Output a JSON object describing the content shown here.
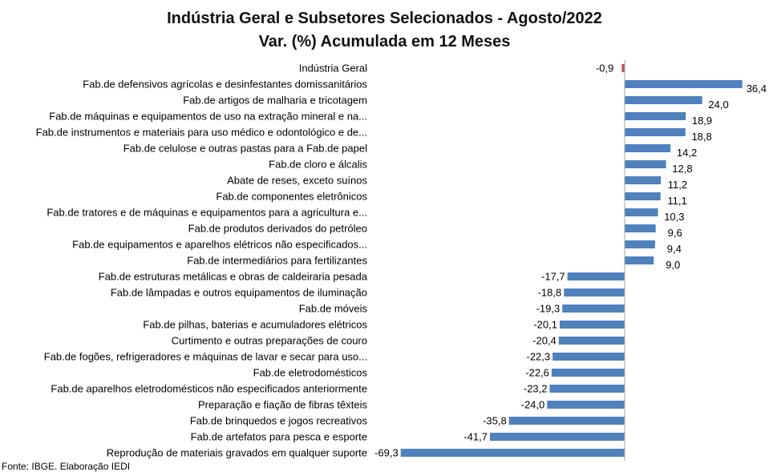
{
  "chart_data": {
    "type": "bar",
    "orientation": "horizontal",
    "title": "Indústria Geral e Subsetores Selecionados - Agosto/2022",
    "subtitle": "Var. (%) Acumulada em 12 Meses",
    "source": "Fonte: IBGE. Elaboração IEDI",
    "xlim": [
      -69.3,
      36.4
    ],
    "grid": false,
    "legend": "none",
    "colors": {
      "positive": "#4F81BD",
      "negative": "#C0504D",
      "axis": "#A6A6A6"
    },
    "categories": [
      "Indústria Geral",
      "Fab.de defensivos agrícolas e desinfestantes domissanitários",
      "Fab.de artigos de malharia e tricotagem",
      "Fab.de máquinas e equipamentos de uso na extração mineral e na...",
      "Fab.de instrumentos e materiais para uso médico e odontológico e de...",
      "Fab.de celulose e outras pastas para a Fab.de papel",
      "Fab.de cloro e álcalis",
      "Abate de reses, exceto suínos",
      "Fab.de componentes eletrônicos",
      "Fab.de tratores e de máquinas e equipamentos para a agricultura e...",
      "Fab.de produtos derivados do petróleo",
      "Fab.de equipamentos e aparelhos elétricos não especificados...",
      "Fab.de intermediários para fertilizantes",
      "Fab.de estruturas metálicas e obras de caldeiraria pesada",
      "Fab.de lâmpadas e outros equipamentos de iluminação",
      "Fab.de móveis",
      "Fab.de pilhas, baterias e acumuladores elétricos",
      "Curtimento e outras preparações de couro",
      "Fab.de fogões, refrigeradores e máquinas de lavar e secar para uso...",
      "Fab.de eletrodomésticos",
      "Fab.de aparelhos eletrodomésticos não especificados anteriormente",
      "Preparação e fiação de fibras têxteis",
      "Fab.de brinquedos e jogos recreativos",
      "Fab.de artefatos para pesca e esporte",
      "Reprodução de materiais gravados em qualquer suporte"
    ],
    "values": [
      -0.9,
      36.4,
      24.0,
      18.9,
      18.8,
      14.2,
      12.8,
      11.2,
      11.1,
      10.3,
      9.6,
      9.4,
      9.0,
      -17.7,
      -18.8,
      -19.3,
      -20.1,
      -20.4,
      -22.3,
      -22.6,
      -23.2,
      -24.0,
      -35.8,
      -41.7,
      -69.3
    ],
    "value_labels": [
      "-0,9",
      "36,4",
      "24,0",
      "18,9",
      "18,8",
      "14,2",
      "12,8",
      "11,2",
      "11,1",
      "10,3",
      "9,6",
      "9,4",
      "9,0",
      "-17,7",
      "-18,8",
      "-19,3",
      "-20,1",
      "-20,4",
      "-22,3",
      "-22,6",
      "-23,2",
      "-24,0",
      "-35,8",
      "-41,7",
      "-69,3"
    ]
  }
}
